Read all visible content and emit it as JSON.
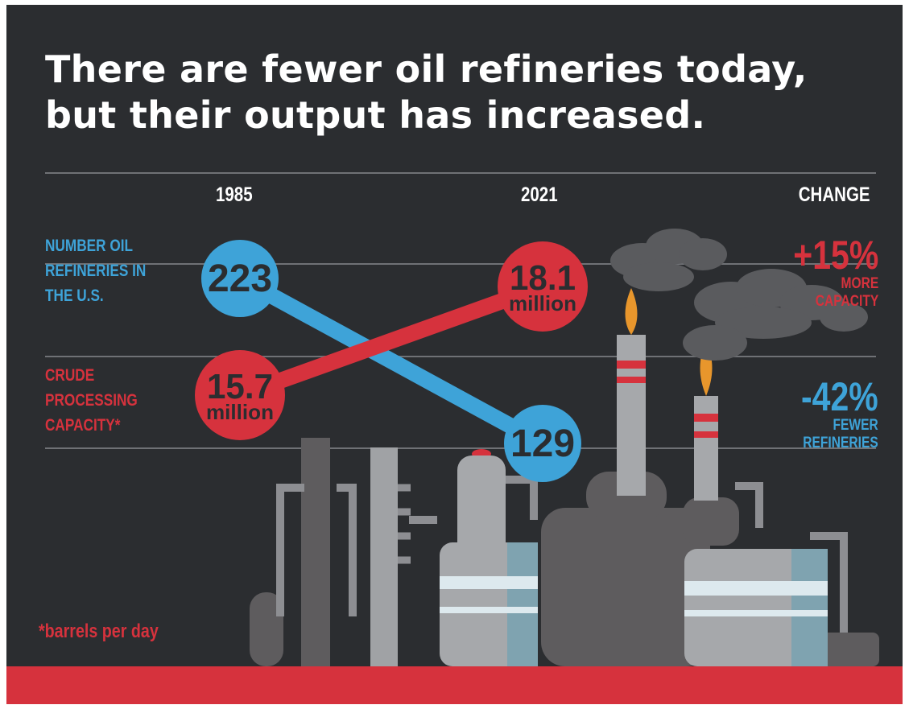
{
  "title_lines": [
    "There are fewer oil refineries today,",
    "but their output has increased."
  ],
  "columns": {
    "start": "1985",
    "end": "2021",
    "change": "CHANGE"
  },
  "rows": {
    "refineries_label": [
      "NUMBER OIL",
      "REFINERIES IN",
      "THE U.S."
    ],
    "capacity_label": [
      "CRUDE",
      "PROCESSING",
      "CAPACITY*"
    ]
  },
  "changes": {
    "capacity": {
      "value": "+15%",
      "line1": "MORE",
      "line2": "CAPACITY"
    },
    "refineries": {
      "value": "-42%",
      "line1": "FEWER",
      "line2": "REFINERIES"
    }
  },
  "footnote": "*barrels per day",
  "colors": {
    "background": "#2b2d30",
    "blue": "#3ea3d8",
    "red": "#d6323d",
    "text": "#ffffff"
  },
  "chart_data": {
    "type": "line",
    "x": [
      "1985",
      "2021"
    ],
    "series": [
      {
        "name": "NUMBER OIL REFINERIES IN THE U.S.",
        "values": [
          223,
          129
        ],
        "labels": [
          "223",
          "129"
        ],
        "color": "#3ea3d8"
      },
      {
        "name": "CRUDE PROCESSING CAPACITY*",
        "values": [
          15.7,
          18.1
        ],
        "labels": [
          "15.7",
          "18.1"
        ],
        "unit_label": "million",
        "color": "#d6323d"
      }
    ]
  }
}
